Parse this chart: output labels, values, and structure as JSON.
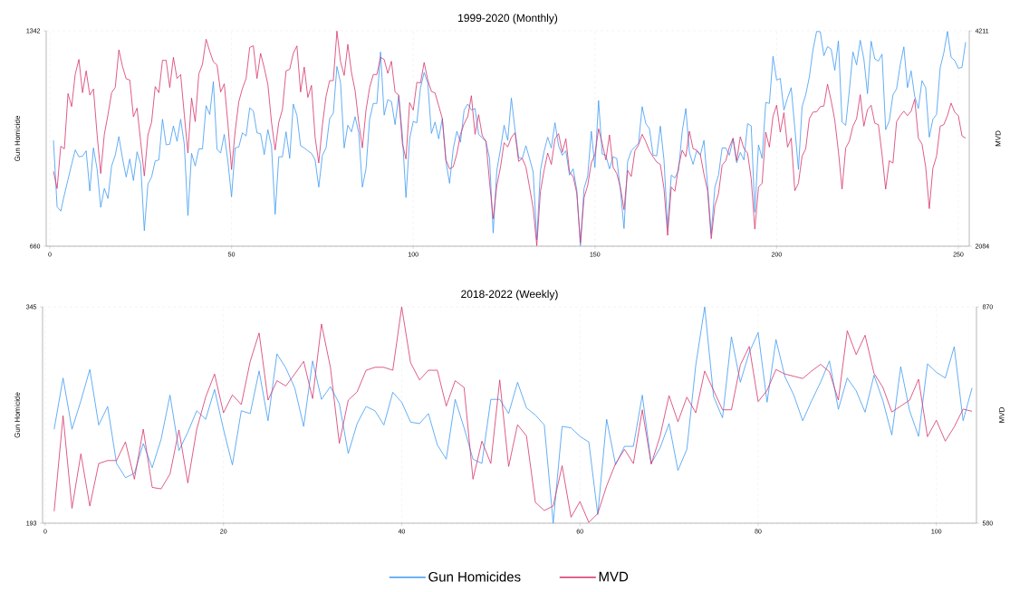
{
  "chart_data": [
    {
      "type": "line",
      "title": "1999-2020 (Monthly)",
      "ylabel": "Gun Homicide",
      "y2label": "MVD",
      "xlim": [
        -1,
        253
      ],
      "xticks": [
        0,
        50,
        100,
        150,
        200,
        250
      ],
      "ylim": [
        660,
        1342
      ],
      "yticks": [
        660,
        1342
      ],
      "y2lim": [
        2084,
        4211
      ],
      "y2ticks": [
        2084,
        4211
      ],
      "grid": true,
      "x": [
        1,
        2,
        3,
        4,
        5,
        6,
        7,
        8,
        9,
        10,
        11,
        12,
        13,
        14,
        15,
        16,
        17,
        18,
        19,
        20,
        21,
        22,
        23,
        24,
        25,
        26,
        27,
        28,
        29,
        30,
        31,
        32,
        33,
        34,
        35,
        36,
        37,
        38,
        39,
        40,
        41,
        42,
        43,
        44,
        45,
        46,
        47,
        48,
        49,
        50,
        51,
        52,
        53,
        54,
        55,
        56,
        57,
        58,
        59,
        60,
        61,
        62,
        63,
        64,
        65,
        66,
        67,
        68,
        69,
        70,
        71,
        72,
        73,
        74,
        75,
        76,
        77,
        78,
        79,
        80,
        81,
        82,
        83,
        84,
        85,
        86,
        87,
        88,
        89,
        90,
        91,
        92,
        93,
        94,
        95,
        96,
        97,
        98,
        99,
        100,
        101,
        102,
        103,
        104,
        105,
        106,
        107,
        108,
        109,
        110,
        111,
        112,
        113,
        114,
        115,
        116,
        117,
        118,
        119,
        120,
        121,
        122,
        123,
        124,
        125,
        126,
        127,
        128,
        129,
        130,
        131,
        132,
        133,
        134,
        135,
        136,
        137,
        138,
        139,
        140,
        141,
        142,
        143,
        144,
        145,
        146,
        147,
        148,
        149,
        150,
        151,
        152,
        153,
        154,
        155,
        156,
        157,
        158,
        159,
        160,
        161,
        162,
        163,
        164,
        165,
        166,
        167,
        168,
        169,
        170,
        171,
        172,
        173,
        174,
        175,
        176,
        177,
        178,
        179,
        180,
        181,
        182,
        183,
        184,
        185,
        186,
        187,
        188,
        189,
        190,
        191,
        192,
        193,
        194,
        195,
        196,
        197,
        198,
        199,
        200,
        201,
        202,
        203,
        204,
        205,
        206,
        207,
        208,
        209,
        210,
        211,
        212,
        213,
        214,
        215,
        216,
        217,
        218,
        219,
        220,
        221,
        222,
        223,
        224,
        225,
        226,
        227,
        228,
        229,
        230,
        231,
        232,
        233,
        234,
        235,
        236,
        237,
        238,
        239,
        240,
        241,
        242,
        243,
        244,
        245,
        246,
        247,
        248,
        249,
        250,
        251,
        252
      ],
      "series": [
        {
          "color": "#3d9bf3",
          "values": [
            995,
            785,
            771,
            823,
            871,
            919,
            965,
            943,
            945,
            962,
            835,
            971,
            905,
            783,
            843,
            811,
            914,
            948,
            1007,
            938,
            879,
            936,
            868,
            959,
            919,
            709,
            857,
            879,
            930,
            933,
            1062,
            981,
            983,
            1041,
            992,
            1062,
            983,
            757,
            954,
            914,
            968,
            968,
            1105,
            1077,
            1181,
            967,
            955,
            1014,
            928,
            816,
            971,
            974,
            1019,
            1009,
            1098,
            1088,
            1019,
            1016,
            950,
            1029,
            976,
            761,
            943,
            943,
            1022,
            938,
            1110,
            1074,
            978,
            971,
            962,
            954,
            933,
            847,
            948,
            971,
            1064,
            1081,
            1229,
            1177,
            971,
            1043,
            1022,
            1070,
            1019,
            847,
            905,
            1062,
            1112,
            1112,
            1275,
            1075,
            1124,
            1118,
            1045,
            1137,
            1014,
            814,
            1000,
            1055,
            1051,
            1162,
            1210,
            1177,
            1017,
            1053,
            1000,
            1064,
            928,
            859,
            968,
            1024,
            989,
            1091,
            1110,
            1091,
            1096,
            1014,
            1003,
            991,
            938,
            702,
            900,
            967,
            1043,
            995,
            1129,
            1029,
            940,
            938,
            978,
            938,
            895,
            680,
            900,
            960,
            1005,
            971,
            1051,
            978,
            948,
            962,
            885,
            905,
            838,
            662,
            843,
            881,
            1024,
            909,
            1121,
            952,
            948,
            905,
            943,
            938,
            838,
            716,
            928,
            962,
            974,
            986,
            1102,
            1048,
            1032,
            948,
            946,
            1040,
            933,
            718,
            885,
            876,
            900,
            1022,
            1096,
            957,
            919,
            962,
            948,
            995,
            852,
            699,
            847,
            885,
            971,
            971,
            948,
            1000,
            924,
            957,
            933,
            1048,
            1041,
            768,
            981,
            938,
            1115,
            1112,
            1261,
            1186,
            1191,
            1091,
            1129,
            1162,
            1034,
            903,
            1102,
            1139,
            1196,
            1282,
            1340,
            1339,
            1263,
            1292,
            1284,
            1217,
            1310,
            1053,
            1043,
            1153,
            1275,
            1234,
            1312,
            1253,
            1143,
            1309,
            1253,
            1246,
            1268,
            1029,
            1057,
            1139,
            1158,
            1234,
            1291,
            1162,
            1215,
            1134,
            1096,
            1184,
            1162,
            1005,
            1062,
            1077,
            1225,
            1272,
            1340,
            1258,
            1248,
            1223,
            1226,
            1306
          ]
        },
        {
          "color": "#d6336c",
          "axis": "y2",
          "values": [
            2823,
            2653,
            3070,
            3046,
            3591,
            3463,
            3785,
            3928,
            3600,
            3815,
            3576,
            3636,
            3189,
            2802,
            3189,
            3383,
            3600,
            3651,
            4023,
            3859,
            3737,
            3725,
            3362,
            3448,
            3115,
            2778,
            3183,
            3308,
            3660,
            3600,
            3919,
            3919,
            3651,
            3949,
            3740,
            3779,
            3383,
            3004,
            3547,
            3314,
            3785,
            3880,
            4128,
            4008,
            3904,
            3874,
            3606,
            3687,
            3293,
            2841,
            3219,
            3511,
            3642,
            3740,
            4047,
            4062,
            3740,
            3988,
            3845,
            3681,
            3308,
            3034,
            3308,
            3433,
            3815,
            3830,
            3988,
            4062,
            3606,
            3853,
            3553,
            3672,
            3159,
            2906,
            3278,
            3562,
            3719,
            3719,
            4208,
            3904,
            3770,
            4077,
            3800,
            3621,
            3308,
            3055,
            3427,
            3651,
            3779,
            3779,
            3949,
            3928,
            3791,
            3910,
            3606,
            3576,
            3100,
            2945,
            3502,
            3428,
            3702,
            3696,
            3898,
            3725,
            3612,
            3597,
            3472,
            3344,
            2936,
            2847,
            2867,
            2996,
            3189,
            3293,
            3362,
            3570,
            3189,
            3383,
            3174,
            3124,
            2713,
            2355,
            2683,
            2862,
            3106,
            3064,
            3159,
            3204,
            2921,
            2951,
            2867,
            2668,
            2459,
            2090,
            2623,
            2832,
            3004,
            2891,
            3145,
            3195,
            3010,
            3145,
            2817,
            2772,
            2608,
            2117,
            2564,
            2683,
            2906,
            2987,
            3243,
            3100,
            2936,
            3183,
            2862,
            2802,
            2668,
            2444,
            2832,
            2772,
            3025,
            3085,
            3189,
            3115,
            3025,
            2966,
            2915,
            2891,
            2653,
            2191,
            2668,
            2626,
            2869,
            3032,
            2967,
            3219,
            3047,
            3032,
            2988,
            2795,
            2632,
            2158,
            2484,
            2603,
            2884,
            2928,
            3062,
            3151,
            2928,
            3165,
            3047,
            3003,
            2751,
            2253,
            2668,
            2706,
            3210,
            3062,
            3367,
            3476,
            3210,
            3402,
            3062,
            3151,
            2632,
            2706,
            2973,
            3047,
            3343,
            3408,
            3411,
            3462,
            3468,
            3684,
            3521,
            3328,
            3017,
            2647,
            3053,
            3121,
            3269,
            3343,
            3580,
            3269,
            3432,
            3476,
            3299,
            3284,
            2988,
            2647,
            2928,
            2905,
            3314,
            3373,
            3417,
            3373,
            3417,
            3536,
            3151,
            3091,
            2869,
            2455,
            2854,
            2973,
            3269,
            3284,
            3373,
            3497,
            3408,
            3373,
            3174,
            3151
          ]
        }
      ]
    },
    {
      "type": "line",
      "title": "2018-2022 (Weekly)",
      "ylabel": "Gun Homicide",
      "y2label": "MVD",
      "xlim": [
        -0.3,
        104.5
      ],
      "xticks": [
        0,
        20,
        40,
        60,
        80,
        100
      ],
      "ylim": [
        193,
        345
      ],
      "yticks": [
        193,
        345
      ],
      "y2lim": [
        580,
        870
      ],
      "y2ticks": [
        580,
        870
      ],
      "grid": true,
      "legend": "bottom",
      "x": [
        1,
        2,
        3,
        4,
        5,
        6,
        7,
        8,
        9,
        10,
        11,
        12,
        13,
        14,
        15,
        16,
        17,
        18,
        19,
        20,
        21,
        22,
        23,
        24,
        25,
        26,
        27,
        28,
        29,
        30,
        31,
        32,
        33,
        34,
        35,
        36,
        37,
        38,
        39,
        40,
        41,
        42,
        43,
        44,
        45,
        46,
        47,
        48,
        49,
        50,
        51,
        52,
        53,
        54,
        55,
        56,
        57,
        58,
        59,
        60,
        61,
        62,
        63,
        64,
        65,
        66,
        67,
        68,
        69,
        70,
        71,
        72,
        73,
        74,
        75,
        76,
        77,
        78,
        79,
        80,
        81,
        82,
        83,
        84,
        85,
        86,
        87,
        88,
        89,
        90,
        91,
        92,
        93,
        94,
        95,
        96,
        97,
        98,
        99,
        100,
        101,
        102,
        103,
        104
      ],
      "series": [
        {
          "name": "Gun Homicides",
          "color": "#3d9bf3",
          "values": [
            259,
            295,
            259,
            279,
            301,
            262,
            275,
            235,
            225,
            228,
            249,
            232,
            252,
            283,
            244,
            257,
            272,
            266,
            287,
            259,
            234,
            272,
            270,
            300,
            265,
            312,
            302,
            288,
            261,
            307,
            280,
            289,
            277,
            242,
            263,
            275,
            272,
            262,
            285,
            278,
            264,
            263,
            270,
            248,
            238,
            280,
            260,
            238,
            235,
            280,
            280,
            270,
            292,
            274,
            269,
            262,
            193,
            261,
            260,
            254,
            250,
            199,
            266,
            234,
            247,
            247,
            283,
            235,
            246,
            263,
            230,
            245,
            304,
            345,
            282,
            267,
            324,
            292,
            313,
            327,
            278,
            322,
            296,
            283,
            265,
            279,
            292,
            307,
            273,
            295,
            286,
            271,
            297,
            279,
            255,
            303,
            272,
            254,
            305,
            299,
            295,
            317,
            265,
            288
          ]
        },
        {
          "name": "MVD",
          "color": "#d6336c",
          "axis": "y2",
          "values": [
            596,
            724,
            600,
            673,
            603,
            660,
            664,
            664,
            689,
            639,
            706,
            628,
            626,
            646,
            705,
            634,
            706,
            749,
            780,
            728,
            752,
            739,
            797,
            835,
            745,
            771,
            764,
            780,
            797,
            747,
            847,
            789,
            687,
            745,
            756,
            785,
            789,
            789,
            785,
            870,
            795,
            772,
            785,
            785,
            737,
            771,
            762,
            639,
            690,
            660,
            772,
            656,
            712,
            697,
            608,
            597,
            603,
            657,
            588,
            609,
            581,
            593,
            630,
            660,
            679,
            660,
            732,
            659,
            697,
            751,
            716,
            749,
            728,
            784,
            758,
            732,
            732,
            792,
            817,
            743,
            758,
            786,
            780,
            777,
            774,
            784,
            793,
            783,
            745,
            838,
            806,
            832,
            781,
            762,
            729,
            737,
            745,
            773,
            696,
            718,
            690,
            709,
            733,
            730
          ]
        }
      ]
    }
  ]
}
